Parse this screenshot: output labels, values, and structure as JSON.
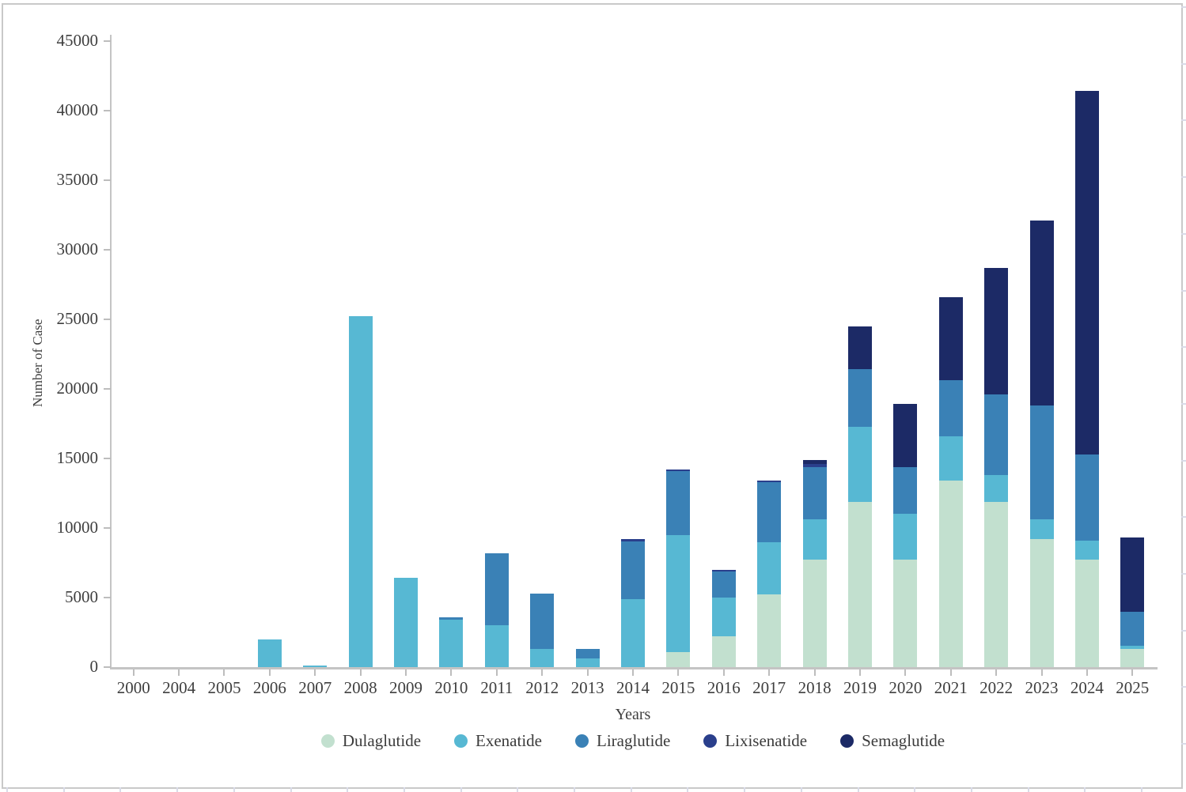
{
  "page": {
    "background": "#ffffff",
    "frame_border_color": "#c9c9c9",
    "axis_color": "#c4c4c4",
    "text_color": "#3f3f3f"
  },
  "chart_data": {
    "type": "bar",
    "stacked": true,
    "title": "",
    "xlabel": "Years",
    "ylabel": "Number of Case",
    "ylim": [
      0,
      45000
    ],
    "ytick_interval": 5000,
    "ytick_labels": [
      "0",
      "5000",
      "10000",
      "15000",
      "20000",
      "25000",
      "30000",
      "35000",
      "40000",
      "45000"
    ],
    "grid": false,
    "legend_position": "bottom",
    "categories": [
      "2000",
      "2004",
      "2005",
      "2006",
      "2007",
      "2008",
      "2009",
      "2010",
      "2011",
      "2012",
      "2013",
      "2014",
      "2015",
      "2016",
      "2017",
      "2018",
      "2019",
      "2020",
      "2021",
      "2022",
      "2023",
      "2024",
      "2025"
    ],
    "series": [
      {
        "name": "Dulaglutide",
        "color": "#c2e0cf",
        "values": [
          0,
          0,
          0,
          0,
          0,
          0,
          0,
          0,
          0,
          0,
          0,
          0,
          1100,
          2200,
          5200,
          7700,
          11900,
          7700,
          13400,
          11900,
          9200,
          7700,
          1300
        ]
      },
      {
        "name": "Exenatide",
        "color": "#57b8d3",
        "values": [
          0,
          0,
          0,
          2000,
          100,
          25200,
          6400,
          3400,
          3000,
          1300,
          600,
          4900,
          8400,
          2800,
          3800,
          2900,
          5400,
          3300,
          3200,
          1900,
          1400,
          1400,
          250
        ]
      },
      {
        "name": "Liraglutide",
        "color": "#3a81b6",
        "values": [
          0,
          0,
          0,
          0,
          0,
          0,
          0,
          200,
          5200,
          4000,
          700,
          4150,
          4600,
          1900,
          4300,
          3800,
          4100,
          3400,
          4000,
          5800,
          8200,
          6200,
          2450
        ]
      },
      {
        "name": "Lixisenatide",
        "color": "#2a3f8c",
        "values": [
          0,
          0,
          0,
          0,
          0,
          0,
          0,
          0,
          0,
          0,
          0,
          150,
          100,
          100,
          100,
          200,
          0,
          0,
          0,
          0,
          0,
          0,
          0
        ]
      },
      {
        "name": "Semaglutide",
        "color": "#1c2a66",
        "values": [
          0,
          0,
          0,
          0,
          0,
          0,
          0,
          0,
          0,
          0,
          0,
          0,
          0,
          0,
          0,
          300,
          3100,
          4500,
          6000,
          9100,
          13300,
          26100,
          5300
        ]
      }
    ]
  }
}
